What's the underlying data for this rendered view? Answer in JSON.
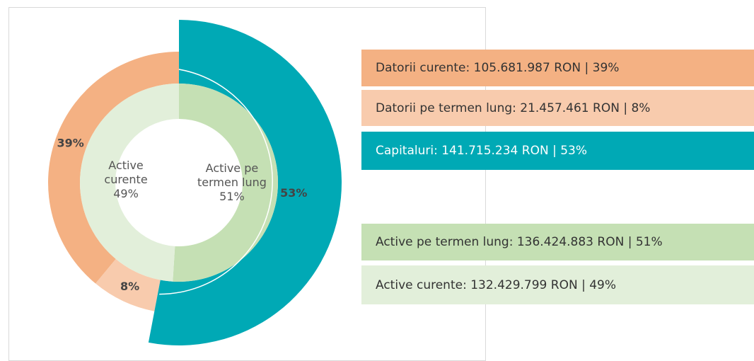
{
  "chart_data": {
    "type": "nested-donut",
    "rings": [
      {
        "direction": "counterclockwise",
        "categories": [
          "Datorii curente",
          "Datorii pe termen lung",
          "Capitaluri"
        ],
        "values": [
          39,
          8,
          53
        ],
        "value_labels": [
          "39%",
          "8%",
          "53%"
        ],
        "colors": [
          "#f4b183",
          "#f8cbad",
          "#00a9b5"
        ],
        "legend": [
          "Datorii curente: 105.681.987 RON | 39%",
          "Datorii pe termen lung: 21.457.461 RON | 8%",
          "Capitaluri: 141.715.234 RON | 53%"
        ]
      },
      {
        "direction": "clockwise",
        "categories": [
          "Active pe termen lung",
          "Active curente"
        ],
        "values": [
          51,
          49
        ],
        "value_labels": [
          "51%",
          "49%"
        ],
        "colors": [
          "#c5e0b4",
          "#e2efda"
        ],
        "legend": [
          "Active pe termen lung: 136.424.883 RON | 51%",
          "Active curente: 132.429.799 RON | 49%"
        ]
      }
    ]
  }
}
